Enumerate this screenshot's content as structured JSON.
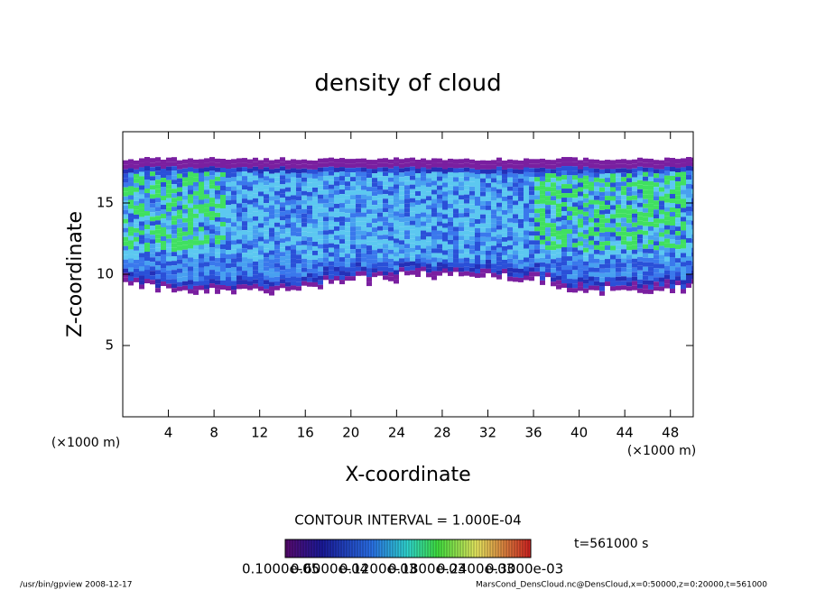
{
  "chart_data": {
    "type": "contour",
    "title": "density of cloud",
    "x_label": "X-coordinate",
    "y_label": "Z-coordinate",
    "x_unit": "(×1000 m)",
    "y_unit": "(×1000 m)",
    "xlim": [
      0,
      50
    ],
    "ylim": [
      0,
      20
    ],
    "xticks": [
      4,
      8,
      12,
      16,
      20,
      24,
      28,
      32,
      36,
      40,
      44,
      48
    ],
    "yticks": [
      5,
      10,
      15
    ],
    "contour_interval": "CONTOUR INTERVAL = 1.000E-04",
    "time_label": "t=561000 s",
    "colorbar_labels": [
      "0.1000e-05",
      "0.6000e-04",
      "0.1200e-03",
      "0.1800e-03",
      "0.2400e-03",
      "0.3000e-03"
    ],
    "footer_left": "/usr/bin/gpview  2008-12-17",
    "footer_right": "MarsCond_DensCloud.nc@DensCloud,x=0:50000,z=0:20000,t=561000"
  }
}
